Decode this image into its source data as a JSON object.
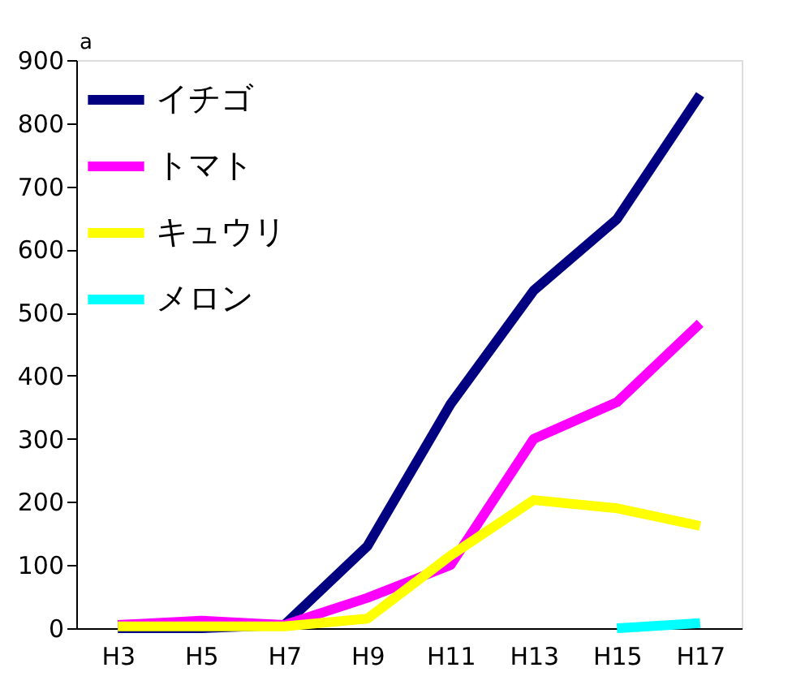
{
  "chart_data": {
    "type": "line",
    "categories": [
      "H3",
      "H5",
      "H7",
      "H9",
      "H11",
      "H13",
      "H15",
      "H17"
    ],
    "series": [
      {
        "name": "イチゴ",
        "color": "#000080",
        "values": [
          0,
          0,
          5,
          130,
          355,
          535,
          648,
          845
        ]
      },
      {
        "name": "トマト",
        "color": "#ff00ff",
        "values": [
          5,
          12,
          5,
          48,
          100,
          300,
          358,
          483
        ]
      },
      {
        "name": "キュウリ",
        "color": "#ffff00",
        "values": [
          3,
          3,
          3,
          15,
          115,
          203,
          190,
          162
        ]
      },
      {
        "name": "メロン",
        "color": "#00ffff",
        "values": [
          null,
          null,
          null,
          null,
          null,
          null,
          0,
          8
        ]
      }
    ],
    "ylim": [
      0,
      900
    ],
    "yticks": [
      0,
      100,
      200,
      300,
      400,
      500,
      600,
      700,
      800,
      900
    ],
    "annotations": [
      "a"
    ],
    "grid": false,
    "legend": "top left",
    "marker": "none",
    "line_style": "solid"
  }
}
